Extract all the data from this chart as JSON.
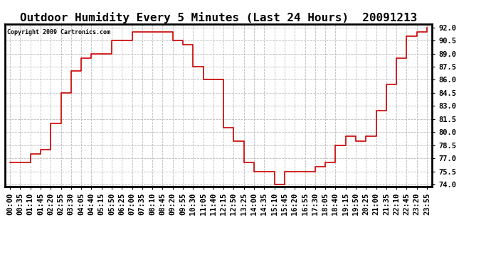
{
  "title": "Outdoor Humidity Every 5 Minutes (Last 24 Hours)  20091213",
  "copyright_text": "Copyright 2009 Cartronics.com",
  "line_color": "#cc0000",
  "bg_color": "#ffffff",
  "grid_color": "#bbbbbb",
  "ylim": [
    73.8,
    92.4
  ],
  "yticks": [
    74.0,
    75.5,
    77.0,
    78.5,
    80.0,
    81.5,
    83.0,
    84.5,
    86.0,
    87.5,
    89.0,
    90.5,
    92.0
  ],
  "title_fontsize": 11.5,
  "tick_fontsize": 7.5,
  "copyright_fontsize": 6.0,
  "values": [
    76.5,
    76.5,
    77.5,
    78.0,
    81.0,
    84.5,
    87.0,
    88.5,
    89.0,
    89.0,
    90.5,
    90.5,
    91.5,
    91.5,
    91.5,
    91.5,
    90.5,
    90.0,
    87.5,
    86.0,
    86.0,
    80.5,
    79.0,
    76.5,
    75.5,
    75.5,
    74.0,
    75.5,
    75.5,
    75.5,
    76.0,
    76.5,
    78.5,
    79.5,
    79.0,
    79.5,
    82.5,
    85.5,
    88.5,
    91.0,
    91.5,
    92.0
  ],
  "x_tick_labels": [
    "00:00",
    "00:35",
    "01:10",
    "01:45",
    "02:20",
    "02:55",
    "03:30",
    "04:05",
    "04:40",
    "05:15",
    "05:50",
    "06:25",
    "07:00",
    "07:35",
    "08:10",
    "08:45",
    "09:20",
    "09:55",
    "10:30",
    "11:05",
    "11:40",
    "12:15",
    "12:50",
    "13:25",
    "14:00",
    "14:35",
    "15:10",
    "15:45",
    "16:20",
    "16:55",
    "17:30",
    "18:05",
    "18:40",
    "19:15",
    "19:50",
    "20:25",
    "21:00",
    "21:35",
    "22:10",
    "22:45",
    "23:20",
    "23:55"
  ]
}
